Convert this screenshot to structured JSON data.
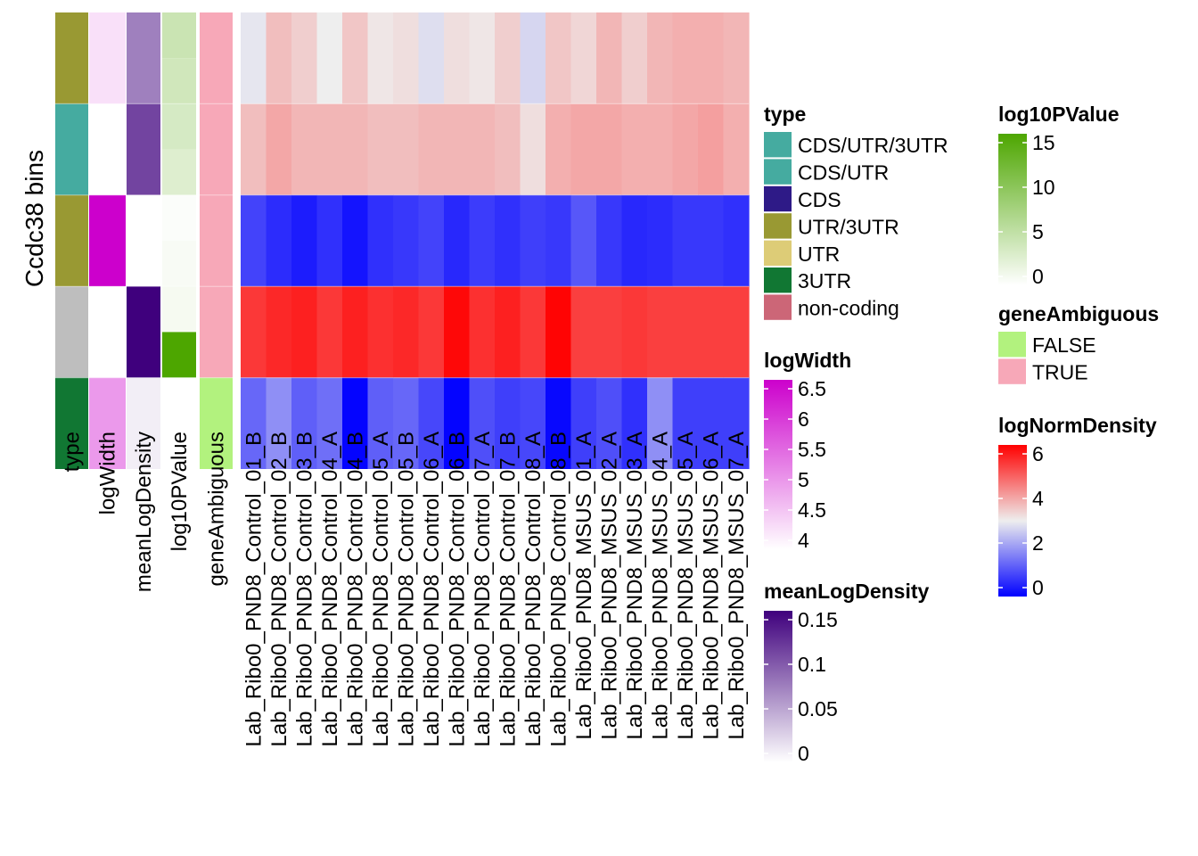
{
  "chart_data": {
    "type": "heatmap",
    "ylabel": "Ccdc38 bins",
    "annotation_columns": [
      "type",
      "logWidth",
      "meanLogDensity",
      "log10PValue",
      "geneAmbiguous"
    ],
    "sample_columns": [
      "Lab_Ribo0_PND8_Control_01_B",
      "Lab_Ribo0_PND8_Control_02_B",
      "Lab_Ribo0_PND8_Control_03_B",
      "Lab_Ribo0_PND8_Control_04_A",
      "Lab_Ribo0_PND8_Control_04_B",
      "Lab_Ribo0_PND8_Control_05_A",
      "Lab_Ribo0_PND8_Control_05_B",
      "Lab_Ribo0_PND8_Control_06_A",
      "Lab_Ribo0_PND8_Control_06_B",
      "Lab_Ribo0_PND8_Control_07_A",
      "Lab_Ribo0_PND8_Control_07_B",
      "Lab_Ribo0_PND8_Control_08_A",
      "Lab_Ribo0_PND8_Control_08_B",
      "Lab_Ribo0_PND8_MSUS_01_A",
      "Lab_Ribo0_PND8_MSUS_02_A",
      "Lab_Ribo0_PND8_MSUS_03_A",
      "Lab_Ribo0_PND8_MSUS_04_A",
      "Lab_Ribo0_PND8_MSUS_05_A",
      "Lab_Ribo0_PND8_MSUS_06_A",
      "Lab_Ribo0_PND8_MSUS_07_A"
    ],
    "rows": [
      {
        "type": "UTR/3UTR",
        "logWidth": 4.3,
        "meanLogDensity": 0.075,
        "log10PValue": [
          4.5,
          4.0
        ],
        "geneAmbiguous": "TRUE",
        "values": [
          2.9,
          3.6,
          3.4,
          3.0,
          3.5,
          3.1,
          3.2,
          2.8,
          3.2,
          3.1,
          3.4,
          2.7,
          3.5,
          3.3,
          3.7,
          3.4,
          3.7,
          3.8,
          3.8,
          3.7
        ]
      },
      {
        "type": "CDS/UTR/3UTR",
        "logWidth": 4.0,
        "meanLogDensity": 0.11,
        "log10PValue": [
          3.5,
          2.8
        ],
        "geneAmbiguous": "TRUE",
        "values": [
          3.6,
          3.9,
          3.7,
          3.7,
          3.7,
          3.6,
          3.6,
          3.7,
          3.7,
          3.7,
          3.6,
          3.2,
          3.8,
          3.9,
          3.9,
          3.8,
          3.8,
          3.9,
          4.0,
          3.8
        ]
      },
      {
        "type": "UTR/3UTR",
        "logWidth": 6.5,
        "meanLogDensity": 0.0,
        "log10PValue": [
          0.3,
          0.6
        ],
        "geneAmbiguous": "TRUE",
        "values": [
          0.85,
          0.55,
          0.35,
          0.6,
          0.25,
          0.6,
          0.7,
          0.85,
          0.5,
          0.75,
          0.6,
          0.8,
          0.7,
          1.1,
          0.7,
          0.5,
          0.55,
          0.7,
          0.7,
          0.6
        ]
      },
      {
        "type": "non-coding",
        "logWidth": 4.0,
        "meanLogDensity": 0.15,
        "log10PValue": [
          0.8,
          15.0
        ],
        "geneAmbiguous": "TRUE",
        "values": [
          5.3,
          5.5,
          5.6,
          5.3,
          5.6,
          5.4,
          5.5,
          5.3,
          5.9,
          5.4,
          5.6,
          5.3,
          5.95,
          5.2,
          5.2,
          5.3,
          5.2,
          5.2,
          5.2,
          5.2
        ]
      },
      {
        "type": "3UTR",
        "logWidth": 5.0,
        "meanLogDensity": 0.01,
        "log10PValue": [
          0.0,
          0.0
        ],
        "geneAmbiguous": "FALSE",
        "values": [
          1.3,
          1.8,
          1.2,
          1.4,
          0.05,
          1.2,
          1.3,
          0.9,
          0.05,
          1.0,
          0.8,
          0.9,
          0.1,
          0.8,
          1.0,
          0.6,
          1.8,
          0.8,
          0.8,
          0.8
        ]
      }
    ],
    "legends": {
      "type": {
        "title": "type",
        "entries": [
          {
            "label": "CDS/UTR/3UTR",
            "color": "#45ABA0"
          },
          {
            "label": "CDS/UTR",
            "color": "#45ABA0"
          },
          {
            "label": "CDS",
            "color": "#2E1A87"
          },
          {
            "label": "UTR/3UTR",
            "color": "#999933"
          },
          {
            "label": "UTR",
            "color": "#DDCC77"
          },
          {
            "label": "3UTR",
            "color": "#117733"
          },
          {
            "label": "non-coding",
            "color": "#CC6677"
          }
        ]
      },
      "logWidth": {
        "title": "logWidth",
        "ticks": [
          "6.5",
          "6",
          "5.5",
          "5",
          "4.5",
          "4"
        ],
        "range": [
          4,
          6.5
        ],
        "colors": [
          "#FFFFFF",
          "#CC00CC"
        ]
      },
      "meanLogDensity": {
        "title": "meanLogDensity",
        "ticks": [
          "0.15",
          "0.1",
          "0.05",
          "0"
        ],
        "range": [
          0,
          0.15
        ],
        "colors": [
          "#FFFFFF",
          "#3F007D"
        ]
      },
      "log10PValue": {
        "title": "log10PValue",
        "ticks": [
          "15",
          "10",
          "5",
          "0"
        ],
        "range": [
          0,
          15
        ],
        "colors": [
          "#FFFFFF",
          "#4DA600"
        ]
      },
      "geneAmbiguous": {
        "title": "geneAmbiguous",
        "entries": [
          {
            "label": "FALSE",
            "color": "#B2F27E"
          },
          {
            "label": "TRUE",
            "color": "#F7A8B8"
          }
        ]
      },
      "logNormDensity": {
        "title": "logNormDensity",
        "ticks": [
          "6",
          "4",
          "2",
          "0"
        ],
        "range": [
          0,
          6
        ],
        "colors": [
          "#0000FF",
          "#EEEEEE",
          "#FF0000"
        ]
      }
    }
  }
}
